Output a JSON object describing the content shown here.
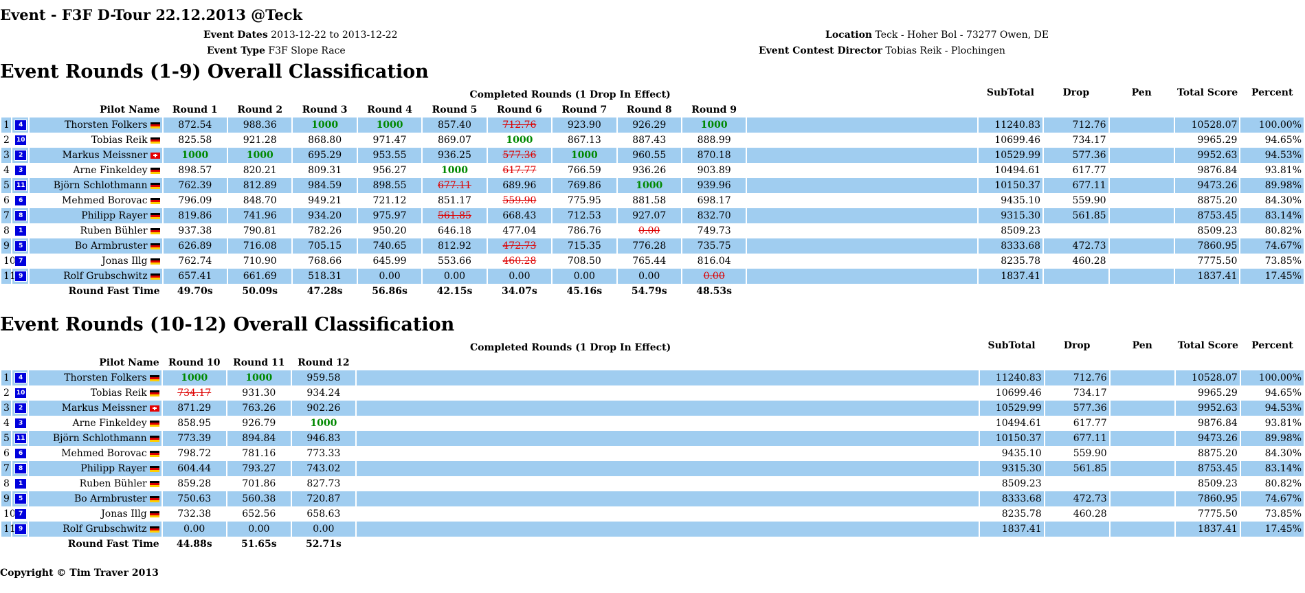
{
  "event": {
    "title": "Event - F3F D-Tour 22.12.2013 @Teck",
    "dates_label": "Event Dates",
    "dates": "2013-12-22 to 2013-12-22",
    "type_label": "Event Type",
    "type": "F3F Slope Race",
    "location_label": "Location",
    "location": "Teck - Hoher Bol - 73277 Owen, DE",
    "director_label": "Event Contest Director",
    "director": "Tobias Reik - Plochingen"
  },
  "pilots": [
    {
      "pos": "1",
      "bib": "4",
      "name": "Thorsten Folkers",
      "flag": "de",
      "subtotal": "11240.83",
      "drop": "712.76",
      "pen": "",
      "total": "10528.07",
      "percent": "100.00%"
    },
    {
      "pos": "2",
      "bib": "10",
      "name": "Tobias Reik",
      "flag": "de",
      "subtotal": "10699.46",
      "drop": "734.17",
      "pen": "",
      "total": "9965.29",
      "percent": "94.65%"
    },
    {
      "pos": "3",
      "bib": "2",
      "name": "Markus Meissner",
      "flag": "ch",
      "subtotal": "10529.99",
      "drop": "577.36",
      "pen": "",
      "total": "9952.63",
      "percent": "94.53%"
    },
    {
      "pos": "4",
      "bib": "3",
      "name": "Arne Finkeldey",
      "flag": "de",
      "subtotal": "10494.61",
      "drop": "617.77",
      "pen": "",
      "total": "9876.84",
      "percent": "93.81%"
    },
    {
      "pos": "5",
      "bib": "11",
      "name": "Björn Schlothmann",
      "flag": "de",
      "subtotal": "10150.37",
      "drop": "677.11",
      "pen": "",
      "total": "9473.26",
      "percent": "89.98%"
    },
    {
      "pos": "6",
      "bib": "6",
      "name": "Mehmed Borovac",
      "flag": "de",
      "subtotal": "9435.10",
      "drop": "559.90",
      "pen": "",
      "total": "8875.20",
      "percent": "84.30%"
    },
    {
      "pos": "7",
      "bib": "8",
      "name": "Philipp Rayer",
      "flag": "de",
      "subtotal": "9315.30",
      "drop": "561.85",
      "pen": "",
      "total": "8753.45",
      "percent": "83.14%"
    },
    {
      "pos": "8",
      "bib": "1",
      "name": "Ruben Bühler",
      "flag": "de",
      "subtotal": "8509.23",
      "drop": "",
      "pen": "",
      "total": "8509.23",
      "percent": "80.82%"
    },
    {
      "pos": "9",
      "bib": "5",
      "name": "Bo Armbruster",
      "flag": "de",
      "subtotal": "8333.68",
      "drop": "472.73",
      "pen": "",
      "total": "7860.95",
      "percent": "74.67%"
    },
    {
      "pos": "10",
      "bib": "7",
      "name": "Jonas Illg",
      "flag": "de",
      "subtotal": "8235.78",
      "drop": "460.28",
      "pen": "",
      "total": "7775.50",
      "percent": "73.85%"
    },
    {
      "pos": "11",
      "bib": "9",
      "name": "Rolf Grubschwitz",
      "flag": "de",
      "subtotal": "1837.41",
      "drop": "",
      "pen": "",
      "total": "1837.41",
      "percent": "17.45%"
    }
  ],
  "headers": {
    "completed": "Completed Rounds (1 Drop In Effect)",
    "pilot_name": "Pilot Name",
    "subtotal": "SubTotal",
    "drop": "Drop",
    "pen": "Pen",
    "total": "Total Score",
    "percent": "Percent",
    "fast_label": "Round Fast Time"
  },
  "sections": [
    {
      "title": "Event Rounds (1-9) Overall Classification",
      "rounds": [
        "Round 1",
        "Round 2",
        "Round 3",
        "Round 4",
        "Round 5",
        "Round 6",
        "Round 7",
        "Round 8",
        "Round 9"
      ],
      "fast": [
        "49.70s",
        "50.09s",
        "47.28s",
        "56.86s",
        "42.15s",
        "34.07s",
        "45.16s",
        "54.79s",
        "48.53s"
      ],
      "scores": [
        [
          [
            "872.54",
            ""
          ],
          [
            "988.36",
            ""
          ],
          [
            "1000",
            "w"
          ],
          [
            "1000",
            "w"
          ],
          [
            "857.40",
            ""
          ],
          [
            "712.76",
            "d"
          ],
          [
            "923.90",
            ""
          ],
          [
            "926.29",
            ""
          ],
          [
            "1000",
            "w"
          ]
        ],
        [
          [
            "825.58",
            ""
          ],
          [
            "921.28",
            ""
          ],
          [
            "868.80",
            ""
          ],
          [
            "971.47",
            ""
          ],
          [
            "869.07",
            ""
          ],
          [
            "1000",
            "w"
          ],
          [
            "867.13",
            ""
          ],
          [
            "887.43",
            ""
          ],
          [
            "888.99",
            ""
          ]
        ],
        [
          [
            "1000",
            "w"
          ],
          [
            "1000",
            "w"
          ],
          [
            "695.29",
            ""
          ],
          [
            "953.55",
            ""
          ],
          [
            "936.25",
            ""
          ],
          [
            "577.36",
            "d"
          ],
          [
            "1000",
            "w"
          ],
          [
            "960.55",
            ""
          ],
          [
            "870.18",
            ""
          ]
        ],
        [
          [
            "898.57",
            ""
          ],
          [
            "820.21",
            ""
          ],
          [
            "809.31",
            ""
          ],
          [
            "956.27",
            ""
          ],
          [
            "1000",
            "w"
          ],
          [
            "617.77",
            "d"
          ],
          [
            "766.59",
            ""
          ],
          [
            "936.26",
            ""
          ],
          [
            "903.89",
            ""
          ]
        ],
        [
          [
            "762.39",
            ""
          ],
          [
            "812.89",
            ""
          ],
          [
            "984.59",
            ""
          ],
          [
            "898.55",
            ""
          ],
          [
            "677.11",
            "d"
          ],
          [
            "689.96",
            ""
          ],
          [
            "769.86",
            ""
          ],
          [
            "1000",
            "w"
          ],
          [
            "939.96",
            ""
          ]
        ],
        [
          [
            "796.09",
            ""
          ],
          [
            "848.70",
            ""
          ],
          [
            "949.21",
            ""
          ],
          [
            "721.12",
            ""
          ],
          [
            "851.17",
            ""
          ],
          [
            "559.90",
            "d"
          ],
          [
            "775.95",
            ""
          ],
          [
            "881.58",
            ""
          ],
          [
            "698.17",
            ""
          ]
        ],
        [
          [
            "819.86",
            ""
          ],
          [
            "741.96",
            ""
          ],
          [
            "934.20",
            ""
          ],
          [
            "975.97",
            ""
          ],
          [
            "561.85",
            "d"
          ],
          [
            "668.43",
            ""
          ],
          [
            "712.53",
            ""
          ],
          [
            "927.07",
            ""
          ],
          [
            "832.70",
            ""
          ]
        ],
        [
          [
            "937.38",
            ""
          ],
          [
            "790.81",
            ""
          ],
          [
            "782.26",
            ""
          ],
          [
            "950.20",
            ""
          ],
          [
            "646.18",
            ""
          ],
          [
            "477.04",
            ""
          ],
          [
            "786.76",
            ""
          ],
          [
            "0.00",
            "d"
          ],
          [
            "749.73",
            ""
          ]
        ],
        [
          [
            "626.89",
            ""
          ],
          [
            "716.08",
            ""
          ],
          [
            "705.15",
            ""
          ],
          [
            "740.65",
            ""
          ],
          [
            "812.92",
            ""
          ],
          [
            "472.73",
            "d"
          ],
          [
            "715.35",
            ""
          ],
          [
            "776.28",
            ""
          ],
          [
            "735.75",
            ""
          ]
        ],
        [
          [
            "762.74",
            ""
          ],
          [
            "710.90",
            ""
          ],
          [
            "768.66",
            ""
          ],
          [
            "645.99",
            ""
          ],
          [
            "553.66",
            ""
          ],
          [
            "460.28",
            "d"
          ],
          [
            "708.50",
            ""
          ],
          [
            "765.44",
            ""
          ],
          [
            "816.04",
            ""
          ]
        ],
        [
          [
            "657.41",
            ""
          ],
          [
            "661.69",
            ""
          ],
          [
            "518.31",
            ""
          ],
          [
            "0.00",
            ""
          ],
          [
            "0.00",
            ""
          ],
          [
            "0.00",
            ""
          ],
          [
            "0.00",
            ""
          ],
          [
            "0.00",
            ""
          ],
          [
            "0.00",
            "d"
          ]
        ]
      ]
    },
    {
      "title": "Event Rounds (10-12) Overall Classification",
      "rounds": [
        "Round 10",
        "Round 11",
        "Round 12"
      ],
      "fast": [
        "44.88s",
        "51.65s",
        "52.71s"
      ],
      "scores": [
        [
          [
            "1000",
            "w"
          ],
          [
            "1000",
            "w"
          ],
          [
            "959.58",
            ""
          ]
        ],
        [
          [
            "734.17",
            "d"
          ],
          [
            "931.30",
            ""
          ],
          [
            "934.24",
            ""
          ]
        ],
        [
          [
            "871.29",
            ""
          ],
          [
            "763.26",
            ""
          ],
          [
            "902.26",
            ""
          ]
        ],
        [
          [
            "858.95",
            ""
          ],
          [
            "926.79",
            ""
          ],
          [
            "1000",
            "w"
          ]
        ],
        [
          [
            "773.39",
            ""
          ],
          [
            "894.84",
            ""
          ],
          [
            "946.83",
            ""
          ]
        ],
        [
          [
            "798.72",
            ""
          ],
          [
            "781.16",
            ""
          ],
          [
            "773.33",
            ""
          ]
        ],
        [
          [
            "604.44",
            ""
          ],
          [
            "793.27",
            ""
          ],
          [
            "743.02",
            ""
          ]
        ],
        [
          [
            "859.28",
            ""
          ],
          [
            "701.86",
            ""
          ],
          [
            "827.73",
            ""
          ]
        ],
        [
          [
            "750.63",
            ""
          ],
          [
            "560.38",
            ""
          ],
          [
            "720.87",
            ""
          ]
        ],
        [
          [
            "732.38",
            ""
          ],
          [
            "652.56",
            ""
          ],
          [
            "658.63",
            ""
          ]
        ],
        [
          [
            "0.00",
            ""
          ],
          [
            "0.00",
            ""
          ],
          [
            "0.00",
            ""
          ]
        ]
      ]
    }
  ],
  "colors": {
    "row_highlight": "#a0cdf0",
    "winner": "#008800",
    "dropped": "#dd0000",
    "badge": "#0000dd"
  },
  "copyright": "Copyright © Tim Traver 2013"
}
